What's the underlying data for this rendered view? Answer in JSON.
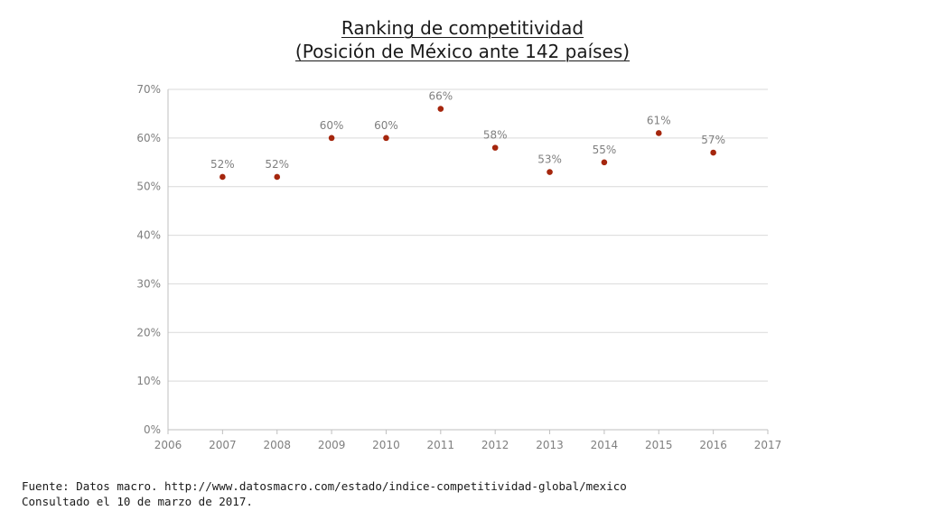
{
  "chart_data": {
    "type": "scatter",
    "title": "Ranking de competitividad",
    "subtitle": "(Posición de México ante 142 países)",
    "xlabel": "",
    "ylabel": "",
    "x": [
      2007,
      2008,
      2009,
      2010,
      2011,
      2012,
      2013,
      2014,
      2015,
      2016
    ],
    "values": [
      0.52,
      0.52,
      0.6,
      0.6,
      0.66,
      0.58,
      0.53,
      0.55,
      0.61,
      0.57
    ],
    "data_labels": [
      "52%",
      "52%",
      "60%",
      "60%",
      "66%",
      "58%",
      "53%",
      "55%",
      "61%",
      "57%"
    ],
    "xlim": [
      2006,
      2017
    ],
    "ylim": [
      0,
      0.7
    ],
    "x_ticks": [
      "2006",
      "2007",
      "2008",
      "2009",
      "2010",
      "2011",
      "2012",
      "2013",
      "2014",
      "2015",
      "2016",
      "2017"
    ],
    "y_ticks": [
      "0%",
      "10%",
      "20%",
      "30%",
      "40%",
      "50%",
      "60%",
      "70%"
    ],
    "grid": true,
    "legend": "none",
    "colors": {
      "marker": "#a5260d",
      "grid": "#d9d9d9",
      "axis": "#bfbfbf",
      "tick_text": "#7f7f7f"
    }
  },
  "footer": {
    "source": "Fuente: Datos macro. http://www.datosmacro.com/estado/indice-competitividad-global/mexico",
    "consulted": "Consultado el 10 de marzo de 2017."
  }
}
